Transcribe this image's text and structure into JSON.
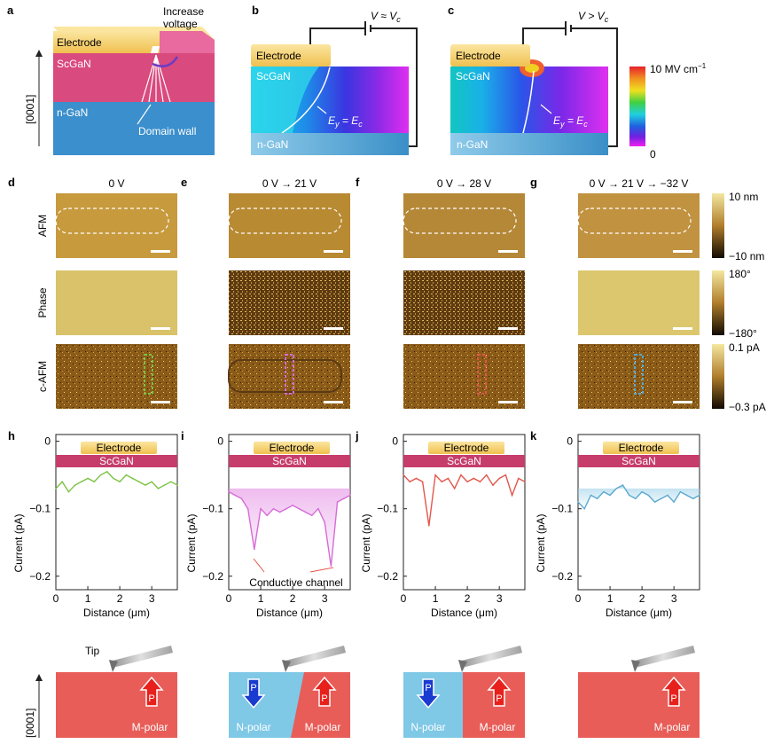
{
  "panels": {
    "a": {
      "letter": "a",
      "electrode": "Electrode",
      "increase": "Increase",
      "voltage": "voltage",
      "scgan": "ScGaN",
      "ngan": "n-GaN",
      "domain_wall": "Domain wall",
      "axis": "[0001]"
    },
    "b": {
      "letter": "b",
      "electrode": "Electrode",
      "scgan": "ScGaN",
      "ngan": "n-GaN",
      "bias": "V ≈ V",
      "bias_sub": "c",
      "field": "E",
      "field_sub1": "y",
      "field_eq": " = E",
      "field_sub2": "c"
    },
    "c": {
      "letter": "c",
      "electrode": "Electrode",
      "scgan": "ScGaN",
      "ngan": "n-GaN",
      "bias": "V > V",
      "bias_sub": "c",
      "field": "E",
      "field_sub1": "y",
      "field_eq": " = E",
      "field_sub2": "c"
    },
    "colorbar": {
      "max": "10 MV cm",
      "max_sup": "−1",
      "min": "0"
    }
  },
  "micrographs": {
    "rows": [
      "AFM",
      "Phase",
      "c-AFM"
    ],
    "columns": [
      {
        "letter": "d",
        "title": "0 V"
      },
      {
        "letter": "e",
        "title": "0 V → 21 V"
      },
      {
        "letter": "f",
        "title": "0 V → 28 V"
      },
      {
        "letter": "g",
        "title": "0 V → 21 V → −32 V"
      }
    ],
    "scales": [
      {
        "max": "10 nm",
        "min": "−10 nm"
      },
      {
        "max": "180°",
        "min": "−180°"
      },
      {
        "max": "0.1 pA",
        "min": "−0.3 pA"
      }
    ],
    "colors": {
      "afm": "#b98a2e",
      "phase": "#dcc473",
      "cafm": "#6e4a12"
    }
  },
  "profiles": {
    "letters": [
      "h",
      "i",
      "j",
      "k"
    ],
    "electrode": "Electrode",
    "scgan": "ScGaN",
    "ylabel": "Current (pA)",
    "xlabel": "Distance (μm)",
    "yticks": [
      "0",
      "−0.1",
      "−0.2"
    ],
    "xticks": [
      "0",
      "1",
      "2",
      "3"
    ],
    "annotation": "Conductive channel",
    "colors": [
      "#7cc243",
      "#d66bd6",
      "#e2574c",
      "#5aa9cf"
    ]
  },
  "chart_data": [
    {
      "type": "line",
      "name": "h",
      "xlim": [
        0,
        3.8
      ],
      "ylim": [
        -0.22,
        0.01
      ],
      "xlabel": "Distance (μm)",
      "ylabel": "Current (pA)",
      "x": [
        0,
        0.2,
        0.4,
        0.6,
        0.8,
        1.0,
        1.2,
        1.4,
        1.6,
        1.8,
        2.0,
        2.2,
        2.4,
        2.6,
        2.8,
        3.0,
        3.2,
        3.4,
        3.6,
        3.8
      ],
      "y": [
        -0.07,
        -0.06,
        -0.075,
        -0.065,
        -0.06,
        -0.055,
        -0.06,
        -0.05,
        -0.045,
        -0.055,
        -0.06,
        -0.05,
        -0.055,
        -0.06,
        -0.065,
        -0.06,
        -0.07,
        -0.065,
        -0.06,
        -0.065
      ]
    },
    {
      "type": "line",
      "name": "i",
      "xlim": [
        0,
        3.8
      ],
      "ylim": [
        -0.22,
        0.01
      ],
      "x": [
        0,
        0.2,
        0.4,
        0.6,
        0.8,
        1.0,
        1.2,
        1.4,
        1.6,
        1.8,
        2.0,
        2.2,
        2.4,
        2.6,
        2.8,
        3.0,
        3.2,
        3.4,
        3.6,
        3.8
      ],
      "y": [
        -0.075,
        -0.08,
        -0.085,
        -0.1,
        -0.16,
        -0.1,
        -0.11,
        -0.1,
        -0.105,
        -0.1,
        -0.095,
        -0.1,
        -0.105,
        -0.11,
        -0.1,
        -0.12,
        -0.185,
        -0.09,
        -0.085,
        -0.08
      ]
    },
    {
      "type": "line",
      "name": "j",
      "xlim": [
        0,
        3.8
      ],
      "ylim": [
        -0.22,
        0.01
      ],
      "x": [
        0,
        0.2,
        0.4,
        0.6,
        0.8,
        1.0,
        1.2,
        1.4,
        1.6,
        1.8,
        2.0,
        2.2,
        2.4,
        2.6,
        2.8,
        3.0,
        3.2,
        3.4,
        3.6,
        3.8
      ],
      "y": [
        -0.05,
        -0.06,
        -0.055,
        -0.06,
        -0.125,
        -0.05,
        -0.06,
        -0.055,
        -0.07,
        -0.05,
        -0.06,
        -0.055,
        -0.06,
        -0.05,
        -0.065,
        -0.055,
        -0.05,
        -0.08,
        -0.055,
        -0.06
      ]
    },
    {
      "type": "line",
      "name": "k",
      "xlim": [
        0,
        3.8
      ],
      "ylim": [
        -0.22,
        0.01
      ],
      "x": [
        0,
        0.2,
        0.4,
        0.6,
        0.8,
        1.0,
        1.2,
        1.4,
        1.6,
        1.8,
        2.0,
        2.2,
        2.4,
        2.6,
        2.8,
        3.0,
        3.2,
        3.4,
        3.6,
        3.8
      ],
      "y": [
        -0.09,
        -0.1,
        -0.08,
        -0.085,
        -0.075,
        -0.08,
        -0.07,
        -0.065,
        -0.08,
        -0.085,
        -0.075,
        -0.08,
        -0.09,
        -0.085,
        -0.08,
        -0.09,
        -0.075,
        -0.08,
        -0.085,
        -0.08
      ]
    }
  ],
  "schematics": {
    "tip": "Tip",
    "axis": "[0001]",
    "p": "P",
    "m_polar": "M-polar",
    "n_polar": "N-polar"
  }
}
